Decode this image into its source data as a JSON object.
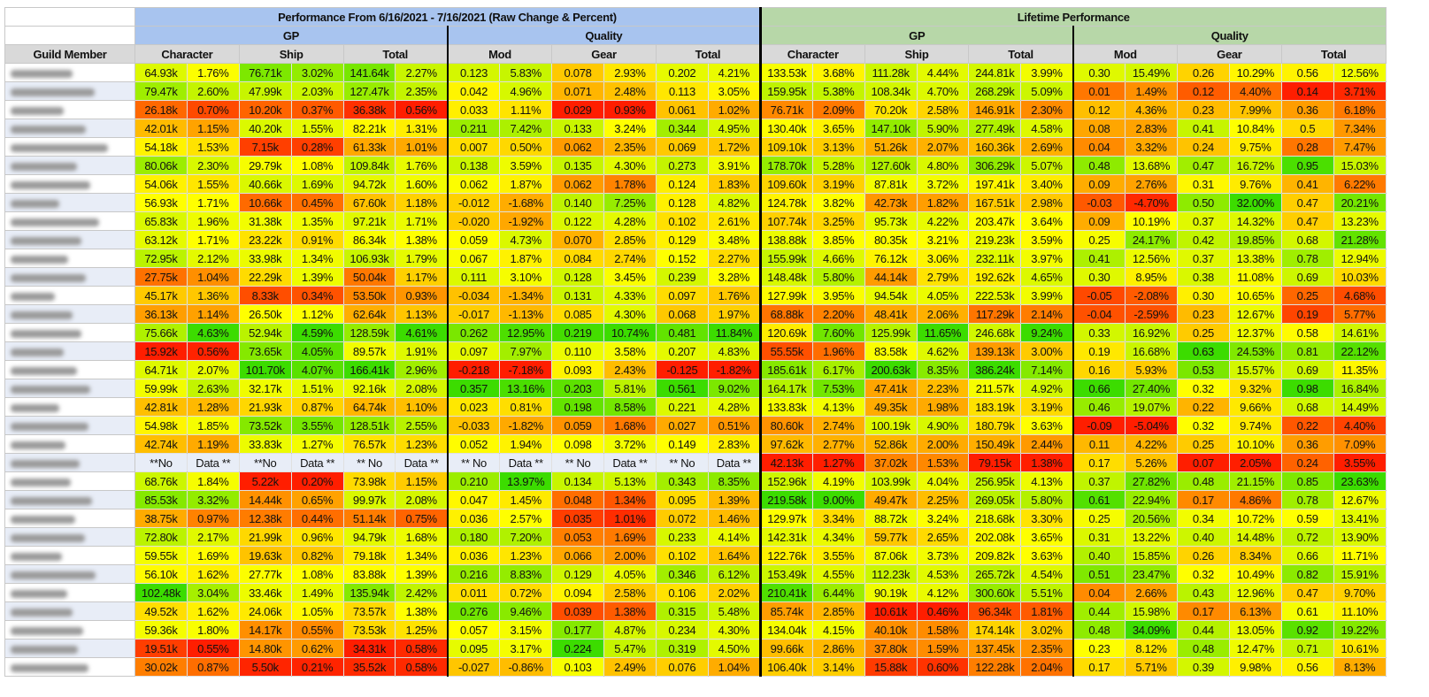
{
  "header": {
    "period_title": "Performance From 6/16/2021 - 7/16/2021 (Raw Change & Percent)",
    "lifetime_title": "Lifetime Performance",
    "gp": "GP",
    "quality": "Quality",
    "guild_member": "Guild Member",
    "sub": [
      "Character",
      "Ship",
      "Total",
      "Mod",
      "Gear",
      "Total",
      "Character",
      "Ship",
      "Total",
      "Mod",
      "Gear",
      "Total"
    ]
  },
  "colors": {
    "header_blue": "#a8c4ef",
    "header_green": "#b7d7a8",
    "header_gray": "#d9d9d9",
    "scale_low": "#ff1e00",
    "scale_mid": "#ffff00",
    "scale_high": "#3cdc00",
    "no_data_bg": "#e8edf7"
  },
  "rows": [
    [
      "64.93k",
      "1.76%",
      "76.71k",
      "3.02%",
      "141.64k",
      "2.27%",
      "0.123",
      "5.83%",
      "0.078",
      "2.93%",
      "0.202",
      "4.21%",
      "133.53k",
      "3.68%",
      "111.28k",
      "4.44%",
      "244.81k",
      "3.99%",
      "0.30",
      "15.49%",
      "0.26",
      "10.29%",
      "0.56",
      "12.56%"
    ],
    [
      "79.47k",
      "2.60%",
      "47.99k",
      "2.03%",
      "127.47k",
      "2.35%",
      "0.042",
      "4.96%",
      "0.071",
      "2.48%",
      "0.113",
      "3.05%",
      "159.95k",
      "5.38%",
      "108.34k",
      "4.70%",
      "268.29k",
      "5.09%",
      "0.01",
      "1.49%",
      "0.12",
      "4.40%",
      "0.14",
      "3.71%"
    ],
    [
      "26.18k",
      "0.70%",
      "10.20k",
      "0.37%",
      "36.38k",
      "0.56%",
      "0.033",
      "1.11%",
      "0.029",
      "0.93%",
      "0.061",
      "1.02%",
      "76.71k",
      "2.09%",
      "70.20k",
      "2.58%",
      "146.91k",
      "2.30%",
      "0.12",
      "4.36%",
      "0.23",
      "7.99%",
      "0.36",
      "6.18%"
    ],
    [
      "42.01k",
      "1.15%",
      "40.20k",
      "1.55%",
      "82.21k",
      "1.31%",
      "0.211",
      "7.42%",
      "0.133",
      "3.24%",
      "0.344",
      "4.95%",
      "130.40k",
      "3.65%",
      "147.10k",
      "5.90%",
      "277.49k",
      "4.58%",
      "0.08",
      "2.83%",
      "0.41",
      "10.84%",
      "0.5",
      "7.34%"
    ],
    [
      "54.18k",
      "1.53%",
      "7.15k",
      "0.28%",
      "61.33k",
      "1.01%",
      "0.007",
      "0.50%",
      "0.062",
      "2.35%",
      "0.069",
      "1.72%",
      "109.10k",
      "3.13%",
      "51.26k",
      "2.07%",
      "160.36k",
      "2.69%",
      "0.04",
      "3.32%",
      "0.24",
      "9.75%",
      "0.28",
      "7.47%"
    ],
    [
      "80.06k",
      "2.30%",
      "29.79k",
      "1.08%",
      "109.84k",
      "1.76%",
      "0.138",
      "3.59%",
      "0.135",
      "4.30%",
      "0.273",
      "3.91%",
      "178.70k",
      "5.28%",
      "127.60k",
      "4.80%",
      "306.29k",
      "5.07%",
      "0.48",
      "13.68%",
      "0.47",
      "16.72%",
      "0.95",
      "15.03%"
    ],
    [
      "54.06k",
      "1.55%",
      "40.66k",
      "1.69%",
      "94.72k",
      "1.60%",
      "0.062",
      "1.87%",
      "0.062",
      "1.78%",
      "0.124",
      "1.83%",
      "109.60k",
      "3.19%",
      "87.81k",
      "3.72%",
      "197.41k",
      "3.40%",
      "0.09",
      "2.76%",
      "0.31",
      "9.76%",
      "0.41",
      "6.22%"
    ],
    [
      "56.93k",
      "1.71%",
      "10.66k",
      "0.45%",
      "67.60k",
      "1.18%",
      "-0.012",
      "-1.68%",
      "0.140",
      "7.25%",
      "0.128",
      "4.82%",
      "124.78k",
      "3.82%",
      "42.73k",
      "1.82%",
      "167.51k",
      "2.98%",
      "-0.03",
      "-4.70%",
      "0.50",
      "32.00%",
      "0.47",
      "20.21%"
    ],
    [
      "65.83k",
      "1.96%",
      "31.38k",
      "1.35%",
      "97.21k",
      "1.71%",
      "-0.020",
      "-1.92%",
      "0.122",
      "4.28%",
      "0.102",
      "2.61%",
      "107.74k",
      "3.25%",
      "95.73k",
      "4.22%",
      "203.47k",
      "3.64%",
      "0.09",
      "10.19%",
      "0.37",
      "14.32%",
      "0.47",
      "13.23%"
    ],
    [
      "63.12k",
      "1.71%",
      "23.22k",
      "0.91%",
      "86.34k",
      "1.38%",
      "0.059",
      "4.73%",
      "0.070",
      "2.85%",
      "0.129",
      "3.48%",
      "138.88k",
      "3.85%",
      "80.35k",
      "3.21%",
      "219.23k",
      "3.59%",
      "0.25",
      "24.17%",
      "0.42",
      "19.85%",
      "0.68",
      "21.28%"
    ],
    [
      "72.95k",
      "2.12%",
      "33.98k",
      "1.34%",
      "106.93k",
      "1.79%",
      "0.067",
      "1.87%",
      "0.084",
      "2.74%",
      "0.152",
      "2.27%",
      "155.99k",
      "4.66%",
      "76.12k",
      "3.06%",
      "232.11k",
      "3.97%",
      "0.41",
      "12.56%",
      "0.37",
      "13.38%",
      "0.78",
      "12.94%"
    ],
    [
      "27.75k",
      "1.04%",
      "22.29k",
      "1.39%",
      "50.04k",
      "1.17%",
      "0.111",
      "3.10%",
      "0.128",
      "3.45%",
      "0.239",
      "3.28%",
      "148.48k",
      "5.80%",
      "44.14k",
      "2.79%",
      "192.62k",
      "4.65%",
      "0.30",
      "8.95%",
      "0.38",
      "11.08%",
      "0.69",
      "10.03%"
    ],
    [
      "45.17k",
      "1.36%",
      "8.33k",
      "0.34%",
      "53.50k",
      "0.93%",
      "-0.034",
      "-1.34%",
      "0.131",
      "4.33%",
      "0.097",
      "1.76%",
      "127.99k",
      "3.95%",
      "94.54k",
      "4.05%",
      "222.53k",
      "3.99%",
      "-0.05",
      "-2.08%",
      "0.30",
      "10.65%",
      "0.25",
      "4.68%"
    ],
    [
      "36.13k",
      "1.14%",
      "26.50k",
      "1.12%",
      "62.64k",
      "1.13%",
      "-0.017",
      "-1.13%",
      "0.085",
      "4.30%",
      "0.068",
      "1.97%",
      "68.88k",
      "2.20%",
      "48.41k",
      "2.06%",
      "117.29k",
      "2.14%",
      "-0.04",
      "-2.59%",
      "0.23",
      "12.67%",
      "0.19",
      "5.77%"
    ],
    [
      "75.66k",
      "4.63%",
      "52.94k",
      "4.59%",
      "128.59k",
      "4.61%",
      "0.262",
      "12.95%",
      "0.219",
      "10.74%",
      "0.481",
      "11.84%",
      "120.69k",
      "7.60%",
      "125.99k",
      "11.65%",
      "246.68k",
      "9.24%",
      "0.33",
      "16.92%",
      "0.25",
      "12.37%",
      "0.58",
      "14.61%"
    ],
    [
      "15.92k",
      "0.56%",
      "73.65k",
      "4.05%",
      "89.57k",
      "1.91%",
      "0.097",
      "7.97%",
      "0.110",
      "3.58%",
      "0.207",
      "4.83%",
      "55.55k",
      "1.96%",
      "83.58k",
      "4.62%",
      "139.13k",
      "3.00%",
      "0.19",
      "16.68%",
      "0.63",
      "24.53%",
      "0.81",
      "22.12%"
    ],
    [
      "64.71k",
      "2.07%",
      "101.70k",
      "4.07%",
      "166.41k",
      "2.96%",
      "-0.218",
      "-7.18%",
      "0.093",
      "2.43%",
      "-0.125",
      "-1.82%",
      "185.61k",
      "6.17%",
      "200.63k",
      "8.35%",
      "386.24k",
      "7.14%",
      "0.16",
      "5.93%",
      "0.53",
      "15.57%",
      "0.69",
      "11.35%"
    ],
    [
      "59.99k",
      "2.63%",
      "32.17k",
      "1.51%",
      "92.16k",
      "2.08%",
      "0.357",
      "13.16%",
      "0.203",
      "5.81%",
      "0.561",
      "9.02%",
      "164.17k",
      "7.53%",
      "47.41k",
      "2.23%",
      "211.57k",
      "4.92%",
      "0.66",
      "27.40%",
      "0.32",
      "9.32%",
      "0.98",
      "16.84%"
    ],
    [
      "42.81k",
      "1.28%",
      "21.93k",
      "0.87%",
      "64.74k",
      "1.10%",
      "0.023",
      "0.81%",
      "0.198",
      "8.58%",
      "0.221",
      "4.28%",
      "133.83k",
      "4.13%",
      "49.35k",
      "1.98%",
      "183.19k",
      "3.19%",
      "0.46",
      "19.07%",
      "0.22",
      "9.66%",
      "0.68",
      "14.49%"
    ],
    [
      "54.98k",
      "1.85%",
      "73.52k",
      "3.55%",
      "128.51k",
      "2.55%",
      "-0.033",
      "-1.82%",
      "0.059",
      "1.68%",
      "0.027",
      "0.51%",
      "80.60k",
      "2.74%",
      "100.19k",
      "4.90%",
      "180.79k",
      "3.63%",
      "-0.09",
      "-5.04%",
      "0.32",
      "9.74%",
      "0.22",
      "4.40%"
    ],
    [
      "42.74k",
      "1.19%",
      "33.83k",
      "1.27%",
      "76.57k",
      "1.23%",
      "0.052",
      "1.94%",
      "0.098",
      "3.72%",
      "0.149",
      "2.83%",
      "97.62k",
      "2.77%",
      "52.86k",
      "2.00%",
      "150.49k",
      "2.44%",
      "0.11",
      "4.22%",
      "0.25",
      "10.10%",
      "0.36",
      "7.09%"
    ],
    [
      "**No",
      "Data **",
      "**No",
      "Data **",
      "** No",
      "Data **",
      "** No",
      "Data **",
      "** No",
      "Data **",
      "** No",
      "Data **",
      "42.13k",
      "1.27%",
      "37.02k",
      "1.53%",
      "79.15k",
      "1.38%",
      "0.17",
      "5.26%",
      "0.07",
      "2.05%",
      "0.24",
      "3.55%"
    ],
    [
      "68.76k",
      "1.84%",
      "5.22k",
      "0.20%",
      "73.98k",
      "1.15%",
      "0.210",
      "13.97%",
      "0.134",
      "5.13%",
      "0.343",
      "8.35%",
      "152.96k",
      "4.19%",
      "103.99k",
      "4.04%",
      "256.95k",
      "4.13%",
      "0.37",
      "27.82%",
      "0.48",
      "21.15%",
      "0.85",
      "23.63%"
    ],
    [
      "85.53k",
      "3.32%",
      "14.44k",
      "0.65%",
      "99.97k",
      "2.08%",
      "0.047",
      "1.45%",
      "0.048",
      "1.34%",
      "0.095",
      "1.39%",
      "219.58k",
      "9.00%",
      "49.47k",
      "2.25%",
      "269.05k",
      "5.80%",
      "0.61",
      "22.94%",
      "0.17",
      "4.86%",
      "0.78",
      "12.67%"
    ],
    [
      "38.75k",
      "0.97%",
      "12.38k",
      "0.44%",
      "51.14k",
      "0.75%",
      "0.036",
      "2.57%",
      "0.035",
      "1.01%",
      "0.072",
      "1.46%",
      "129.97k",
      "3.34%",
      "88.72k",
      "3.24%",
      "218.68k",
      "3.30%",
      "0.25",
      "20.56%",
      "0.34",
      "10.72%",
      "0.59",
      "13.41%"
    ],
    [
      "72.80k",
      "2.17%",
      "21.99k",
      "0.96%",
      "94.79k",
      "1.68%",
      "0.180",
      "7.20%",
      "0.053",
      "1.69%",
      "0.233",
      "4.14%",
      "142.31k",
      "4.34%",
      "59.77k",
      "2.65%",
      "202.08k",
      "3.65%",
      "0.31",
      "13.22%",
      "0.40",
      "14.48%",
      "0.72",
      "13.90%"
    ],
    [
      "59.55k",
      "1.69%",
      "19.63k",
      "0.82%",
      "79.18k",
      "1.34%",
      "0.036",
      "1.23%",
      "0.066",
      "2.00%",
      "0.102",
      "1.64%",
      "122.76k",
      "3.55%",
      "87.06k",
      "3.73%",
      "209.82k",
      "3.63%",
      "0.40",
      "15.85%",
      "0.26",
      "8.34%",
      "0.66",
      "11.71%"
    ],
    [
      "56.10k",
      "1.62%",
      "27.77k",
      "1.08%",
      "83.88k",
      "1.39%",
      "0.216",
      "8.83%",
      "0.129",
      "4.05%",
      "0.346",
      "6.12%",
      "153.49k",
      "4.55%",
      "112.23k",
      "4.53%",
      "265.72k",
      "4.54%",
      "0.51",
      "23.47%",
      "0.32",
      "10.49%",
      "0.82",
      "15.91%"
    ],
    [
      "102.48k",
      "3.04%",
      "33.46k",
      "1.49%",
      "135.94k",
      "2.42%",
      "0.011",
      "0.72%",
      "0.094",
      "2.58%",
      "0.106",
      "2.02%",
      "210.41k",
      "6.44%",
      "90.19k",
      "4.12%",
      "300.60k",
      "5.51%",
      "0.04",
      "2.66%",
      "0.43",
      "12.96%",
      "0.47",
      "9.70%"
    ],
    [
      "49.52k",
      "1.62%",
      "24.06k",
      "1.05%",
      "73.57k",
      "1.38%",
      "0.276",
      "9.46%",
      "0.039",
      "1.38%",
      "0.315",
      "5.48%",
      "85.74k",
      "2.85%",
      "10.61k",
      "0.46%",
      "96.34k",
      "1.81%",
      "0.44",
      "15.98%",
      "0.17",
      "6.13%",
      "0.61",
      "11.10%"
    ],
    [
      "59.36k",
      "1.80%",
      "14.17k",
      "0.55%",
      "73.53k",
      "1.25%",
      "0.057",
      "3.15%",
      "0.177",
      "4.87%",
      "0.234",
      "4.30%",
      "134.04k",
      "4.15%",
      "40.10k",
      "1.58%",
      "174.14k",
      "3.02%",
      "0.48",
      "34.09%",
      "0.44",
      "13.05%",
      "0.92",
      "19.22%"
    ],
    [
      "19.51k",
      "0.55%",
      "14.80k",
      "0.62%",
      "34.31k",
      "0.58%",
      "0.095",
      "3.17%",
      "0.224",
      "5.47%",
      "0.319",
      "4.50%",
      "99.66k",
      "2.86%",
      "37.80k",
      "1.59%",
      "137.45k",
      "2.35%",
      "0.23",
      "8.12%",
      "0.48",
      "12.47%",
      "0.71",
      "10.61%"
    ],
    [
      "30.02k",
      "0.87%",
      "5.50k",
      "0.21%",
      "35.52k",
      "0.58%",
      "-0.027",
      "-0.86%",
      "0.103",
      "2.49%",
      "0.076",
      "1.04%",
      "106.40k",
      "3.14%",
      "15.88k",
      "0.60%",
      "122.28k",
      "2.04%",
      "0.17",
      "5.71%",
      "0.39",
      "9.98%",
      "0.56",
      "8.13%"
    ]
  ]
}
